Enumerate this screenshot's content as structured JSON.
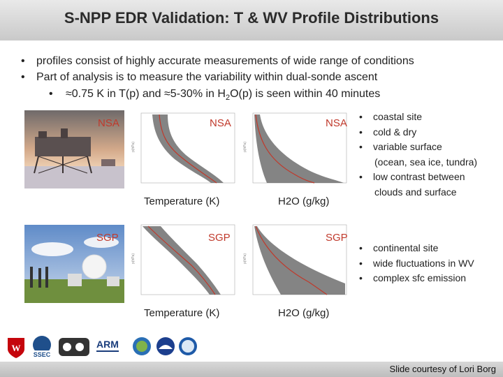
{
  "title": "S-NPP EDR Validation: T & WV Profile Distributions",
  "bullets": [
    "profiles consist of highly accurate measurements of wide range of conditions",
    "Part of analysis is to measure the variability within dual-sonde ascent"
  ],
  "sub_bullet": {
    "a": "≈0.75 K in T(p) and ≈5-30% in H",
    "sub": "2",
    "b": "O(p) is seen within 40 minutes"
  },
  "sites": {
    "nsa": "NSA",
    "sgp": "SGP"
  },
  "plot_labels": {
    "temperature": "Temperature (K)",
    "h2o": "H2O (g/kg)"
  },
  "nsa_notes": [
    "coastal site",
    "cold & dry",
    "variable surface",
    "(ocean, sea ice, tundra)",
    "low contrast between",
    "clouds and surface"
  ],
  "sgp_notes": [
    "continental site",
    "wide fluctuations in WV",
    "complex sfc emission"
  ],
  "footer": "Slide courtesy of Lori Borg",
  "logos": [
    "wisconsin-logo",
    "ssec-logo",
    "cimss-logo",
    "arm-logo",
    "jpss-logo",
    "noaa-logo",
    "ipss-logo"
  ],
  "colors": {
    "accent": "#c0392b",
    "profile": "#666666",
    "mean": "#c0392b"
  }
}
